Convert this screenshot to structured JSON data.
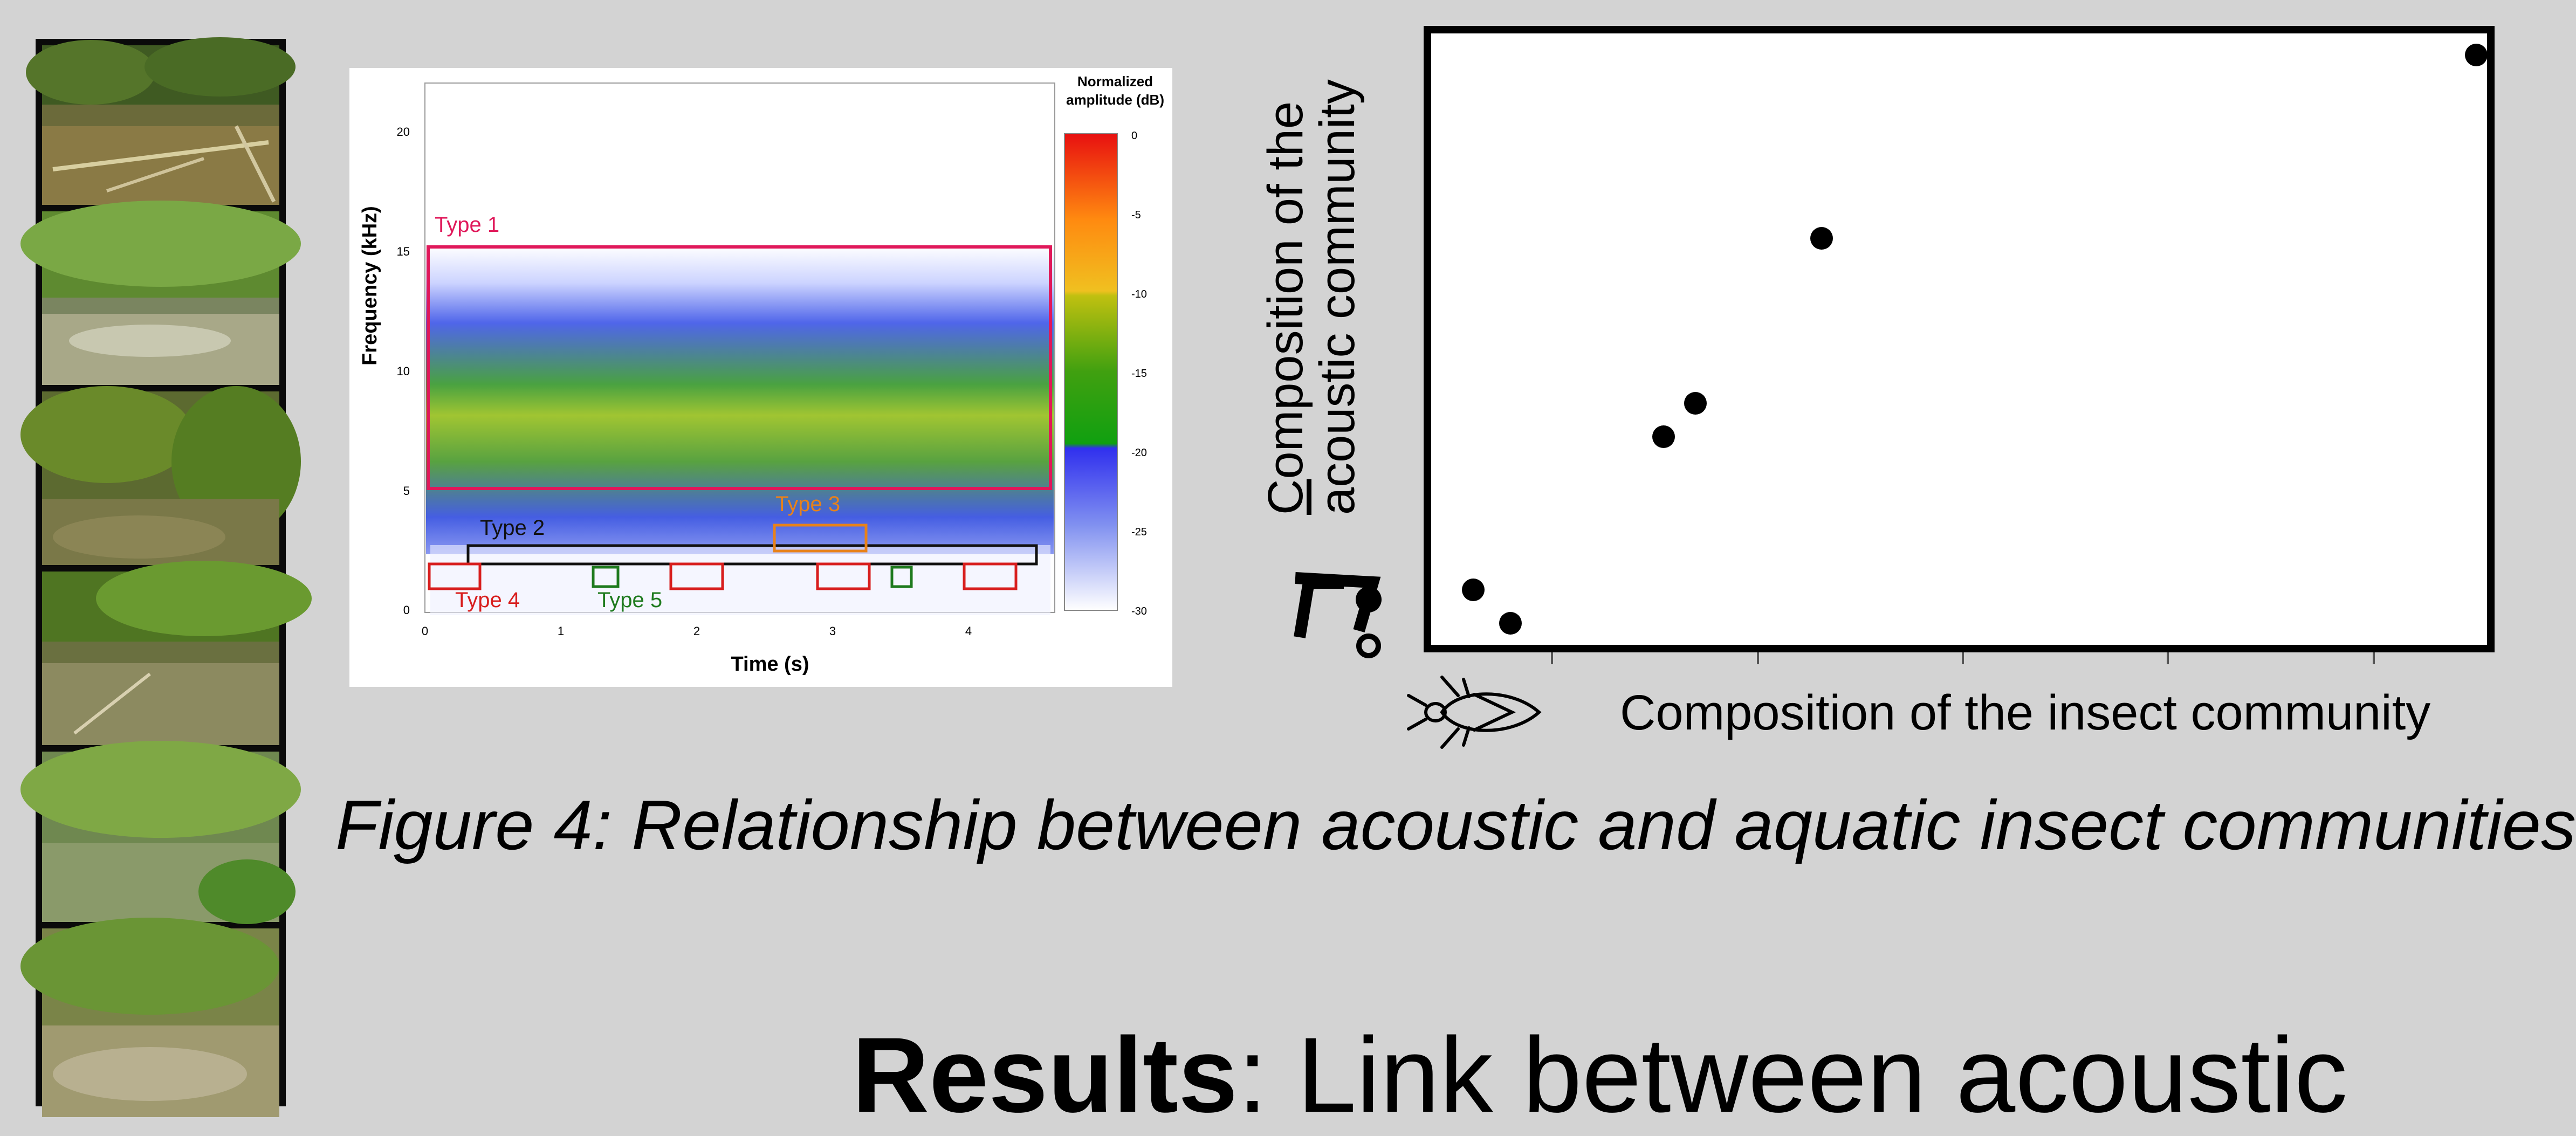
{
  "spectrogram": {
    "ylabel": "Frequency (kHz)",
    "xlabel": "Time (s)",
    "y_ticks": [
      "0",
      "5",
      "10",
      "15",
      "20"
    ],
    "x_ticks": [
      "0",
      "1",
      "2",
      "3",
      "4"
    ],
    "colorbar_title_1": "Normalized",
    "colorbar_title_2": "amplitude (dB)",
    "colorbar_ticks": [
      "0",
      "-5",
      "-10",
      "-15",
      "-20",
      "-25",
      "-30"
    ],
    "types": {
      "type1": "Type 1",
      "type2": "Type 2",
      "type3": "Type 3",
      "type4": "Type 4",
      "type5": "Type 5"
    },
    "colors": {
      "type1": "#e0185a",
      "type2": "#111111",
      "type3": "#e8821a",
      "type4": "#d81e1e",
      "type5": "#1e7a1e"
    }
  },
  "scatter": {
    "ylabel_line1_first": "C",
    "ylabel_line1_rest": "omposition of the",
    "ylabel_line2": "acoustic community",
    "xlabel": "Composition of the insect community",
    "points": [
      {
        "x": 0.04,
        "y": 0.09
      },
      {
        "x": 0.075,
        "y": 0.035
      },
      {
        "x": 0.22,
        "y": 0.34
      },
      {
        "x": 0.25,
        "y": 0.395
      },
      {
        "x": 0.37,
        "y": 0.665
      },
      {
        "x": 0.99,
        "y": 0.965
      }
    ]
  },
  "caption": "Figure 4: Relationship between acoustic and aquatic insect communities",
  "results": {
    "bold": "Results",
    "rest": ": Link between acoustic"
  },
  "icons": {
    "y_axis": "music-note-icon",
    "x_axis": "aquatic-insect-icon"
  }
}
